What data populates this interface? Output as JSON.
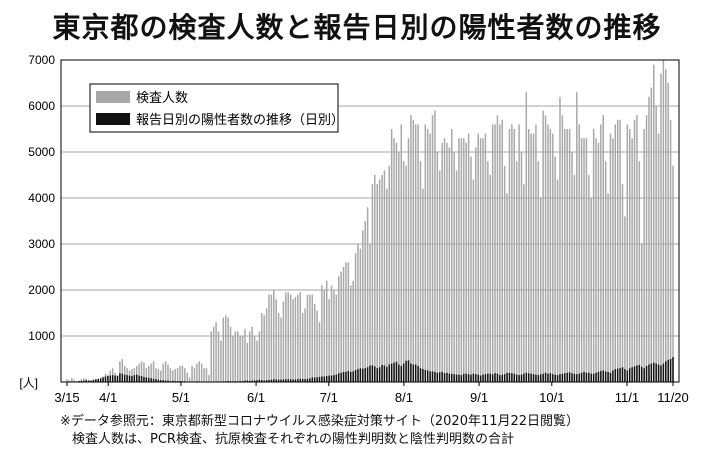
{
  "title": "東京都の検査人数と報告日別の陽性者数の推移",
  "source": {
    "line1": "※データ参照元：東京都新型コロナウイルス感染症対策サイト（2020年11月22日閲覧）",
    "line2": "検査人数は、PCR検査、抗原検査それぞれの陽性判明数と陰性判明数の合計"
  },
  "chart_data": {
    "type": "bar",
    "title": "東京都の検査人数と報告日別の陽性者数の推移",
    "ylabel": "[人]",
    "ylim": [
      0,
      7000
    ],
    "yticks": [
      "0",
      "1000",
      "2000",
      "3000",
      "4000",
      "5000",
      "6000",
      "7000"
    ],
    "xticks": [
      "3/15",
      "4/1",
      "5/1",
      "6/1",
      "7/1",
      "8/1",
      "9/1",
      "10/1",
      "11/1",
      "11/20"
    ],
    "x_range": [
      "2020-03-15",
      "2020-11-20"
    ],
    "grid": true,
    "legend_position": "top-left",
    "series": [
      {
        "name": "検査人数",
        "color": "#a8a8a8",
        "values": [
          60,
          40,
          90,
          50,
          20,
          30,
          60,
          80,
          70,
          40,
          30,
          20,
          50,
          60,
          90,
          120,
          180,
          160,
          250,
          300,
          200,
          150,
          450,
          500,
          350,
          300,
          250,
          280,
          300,
          350,
          400,
          450,
          420,
          300,
          350,
          400,
          450,
          300,
          280,
          250,
          400,
          450,
          380,
          300,
          250,
          280,
          300,
          350,
          350,
          300,
          200,
          100,
          350,
          300,
          400,
          450,
          400,
          300,
          300,
          150,
          1100,
          1200,
          1300,
          1100,
          900,
          1400,
          1450,
          1400,
          1200,
          1000,
          1100,
          1100,
          1000,
          1000,
          1150,
          850,
          1100,
          1200,
          1000,
          900,
          1100,
          1500,
          1450,
          1600,
          1900,
          1900,
          2000,
          1800,
          1500,
          1400,
          1750,
          1950,
          1950,
          1900,
          1800,
          1850,
          1900,
          1950,
          1500,
          1600,
          1900,
          1900,
          1900,
          1700,
          1550,
          1300,
          2100,
          2000,
          2200,
          1800,
          2100,
          2000,
          1900,
          2300,
          2400,
          2500,
          2600,
          2600,
          2100,
          2200,
          2800,
          3000,
          2900,
          3300,
          3500,
          3800,
          3000,
          4300,
          4500,
          4300,
          4400,
          4500,
          4600,
          4200,
          4700,
          5500,
          5300,
          5200,
          5000,
          5600,
          4800,
          4700,
          5300,
          5800,
          5700,
          5600,
          5600,
          4800,
          4200,
          5600,
          5500,
          5400,
          5800,
          5900,
          5000,
          4600,
          5200,
          5300,
          5200,
          5100,
          5500,
          5000,
          4600,
          5300,
          5300,
          5300,
          5200,
          5400,
          4900,
          4400,
          5100,
          5400,
          5300,
          5300,
          5400,
          4800,
          4500,
          5600,
          5600,
          5800,
          5600,
          5700,
          4700,
          4100,
          5500,
          5600,
          5500,
          4800,
          5600,
          5000,
          4300,
          6300,
          5500,
          5400,
          5400,
          5600,
          4800,
          4000,
          5900,
          5800,
          5600,
          5500,
          5400,
          4900,
          4400,
          6200,
          5800,
          5500,
          5500,
          5500,
          5000,
          4500,
          6300,
          5600,
          5300,
          5300,
          5300,
          4500,
          4000,
          5500,
          5300,
          5200,
          5600,
          5800,
          4800,
          4100,
          5400,
          5300,
          5600,
          5700,
          5700,
          4300,
          3600,
          5600,
          5500,
          5300,
          5700,
          5800,
          4800,
          3000,
          5500,
          5800,
          6200,
          6400,
          6900,
          6000,
          5400,
          6700,
          7000,
          6800,
          6500,
          5700,
          4700
        ],
        "note": "grey bars (daily tested persons) approximated from chart"
      },
      {
        "name": "報告日別の陽性者数の推移（日別）",
        "color": "#111111",
        "values": [
          10,
          8,
          15,
          12,
          10,
          20,
          25,
          30,
          40,
          30,
          30,
          50,
          60,
          70,
          80,
          100,
          120,
          130,
          140,
          150,
          140,
          130,
          190,
          180,
          160,
          150,
          140,
          130,
          150,
          160,
          140,
          130,
          110,
          100,
          90,
          80,
          70,
          60,
          50,
          40,
          40,
          30,
          30,
          20,
          25,
          20,
          20,
          20,
          15,
          15,
          10,
          10,
          10,
          10,
          15,
          12,
          10,
          10,
          8,
          8,
          10,
          10,
          12,
          12,
          12,
          15,
          15,
          20,
          18,
          14,
          20,
          15,
          20,
          20,
          30,
          30,
          25,
          30,
          35,
          40,
          50,
          40,
          30,
          40,
          45,
          50,
          60,
          55,
          50,
          50,
          55,
          60,
          60,
          60,
          50,
          55,
          60,
          70,
          65,
          60,
          70,
          75,
          100,
          100,
          100,
          110,
          120,
          120,
          130,
          140,
          140,
          150,
          160,
          190,
          200,
          220,
          220,
          240,
          220,
          230,
          260,
          280,
          300,
          290,
          300,
          320,
          360,
          360,
          340,
          300,
          320,
          370,
          360,
          330,
          380,
          400,
          420,
          440,
          380,
          350,
          400,
          460,
          470,
          400,
          380,
          380,
          350,
          300,
          280,
          260,
          250,
          230,
          230,
          220,
          200,
          210,
          220,
          190,
          200,
          180,
          180,
          170,
          160,
          160,
          150,
          180,
          180,
          170,
          160,
          180,
          170,
          160,
          140,
          160,
          170,
          180,
          180,
          170,
          190,
          180,
          150,
          160,
          170,
          200,
          200,
          190,
          180,
          160,
          150,
          160,
          180,
          200,
          190,
          180,
          170,
          160,
          150,
          170,
          180,
          200,
          180,
          190,
          170,
          160,
          150,
          170,
          180,
          190,
          200,
          210,
          190,
          180,
          170,
          180,
          200,
          220,
          200,
          200,
          180,
          180,
          200,
          220,
          240,
          250,
          230,
          220,
          200,
          250,
          280,
          290,
          300,
          320,
          280,
          250,
          300,
          320,
          340,
          360,
          370,
          330,
          300,
          350,
          380,
          400,
          420,
          400,
          380,
          360,
          400,
          450,
          480,
          500,
          540
        ]
      }
    ]
  }
}
